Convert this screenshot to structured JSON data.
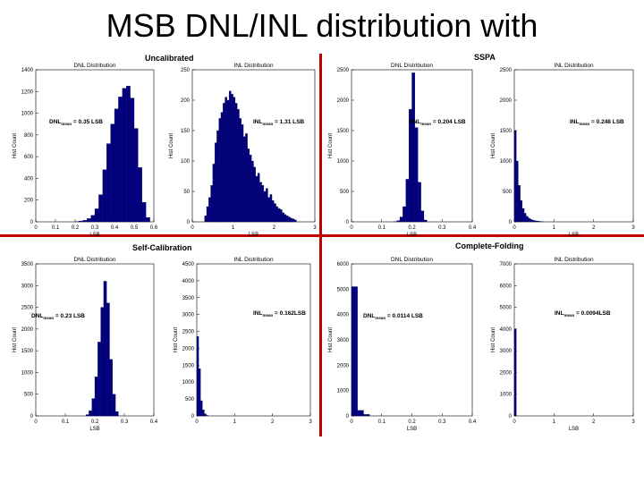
{
  "title": "MSB DNL/INL distribution with",
  "groups": {
    "uncalibrated": "Uncalibrated",
    "sspa": "SSPA",
    "self_calibration": "Self-Calibration",
    "complete_folding": "Complete-Folding"
  },
  "colors": {
    "bars": "#000080",
    "divider": "#c00000"
  },
  "chart_data": [
    {
      "type": "bar",
      "title": "DNL Distribution",
      "xlabel": "LSB",
      "ylabel": "Hist Count",
      "annotation": {
        "main": "DNL",
        "sub": "mean",
        "rest": " = 0.35 LSB"
      },
      "xlim": [
        0,
        0.6
      ],
      "ylim": [
        0,
        1400
      ],
      "xticks": [
        0,
        0.1,
        0.2,
        0.3,
        0.4,
        0.5,
        0.6
      ],
      "yticks": [
        0,
        200,
        400,
        600,
        800,
        1000,
        1200,
        1400
      ],
      "bin_width": 0.02,
      "x": [
        0.21,
        0.23,
        0.25,
        0.27,
        0.29,
        0.31,
        0.33,
        0.35,
        0.37,
        0.39,
        0.41,
        0.43,
        0.45,
        0.47,
        0.49,
        0.51,
        0.53,
        0.55,
        0.57
      ],
      "values": [
        3,
        8,
        15,
        30,
        60,
        120,
        250,
        480,
        720,
        900,
        1040,
        1150,
        1230,
        1250,
        1140,
        860,
        500,
        180,
        40
      ]
    },
    {
      "type": "bar",
      "title": "INL Distribution",
      "xlabel": "LSB",
      "ylabel": "Hist Count",
      "annotation": {
        "main": "INL",
        "sub": "mean",
        "rest": " = 1.31 LSB"
      },
      "xlim": [
        0,
        3
      ],
      "ylim": [
        0,
        250
      ],
      "xticks": [
        0,
        1,
        2,
        3
      ],
      "yticks": [
        0,
        50,
        100,
        150,
        200,
        250
      ],
      "bin_width": 0.05,
      "x": [
        0.325,
        0.375,
        0.425,
        0.475,
        0.525,
        0.575,
        0.625,
        0.675,
        0.725,
        0.775,
        0.825,
        0.875,
        0.925,
        0.975,
        1.025,
        1.075,
        1.125,
        1.175,
        1.225,
        1.275,
        1.325,
        1.375,
        1.425,
        1.475,
        1.525,
        1.575,
        1.625,
        1.675,
        1.725,
        1.775,
        1.825,
        1.875,
        1.925,
        1.975,
        2.025,
        2.075,
        2.125,
        2.175,
        2.225,
        2.275,
        2.325,
        2.375,
        2.425,
        2.475,
        2.525
      ],
      "values": [
        10,
        25,
        40,
        60,
        95,
        130,
        150,
        170,
        180,
        195,
        205,
        200,
        215,
        210,
        205,
        195,
        185,
        170,
        160,
        140,
        145,
        120,
        110,
        100,
        90,
        75,
        80,
        65,
        60,
        50,
        55,
        40,
        45,
        35,
        30,
        25,
        22,
        20,
        15,
        12,
        10,
        8,
        6,
        5,
        3
      ]
    },
    {
      "type": "bar",
      "title": "DNL Distribution",
      "xlabel": "LSB",
      "ylabel": "Hist Count",
      "annotation": {
        "main": "DNL",
        "sub": "mean",
        "rest": " = 0.204 LSB"
      },
      "xlim": [
        0,
        0.4
      ],
      "ylim": [
        0,
        2500
      ],
      "xticks": [
        0,
        0.1,
        0.2,
        0.3,
        0.4
      ],
      "yticks": [
        0,
        500,
        1000,
        1500,
        2000,
        2500
      ],
      "bin_width": 0.01,
      "x": [
        0.145,
        0.155,
        0.165,
        0.175,
        0.185,
        0.195,
        0.205,
        0.215,
        0.225,
        0.235,
        0.245
      ],
      "values": [
        5,
        20,
        80,
        250,
        700,
        1850,
        2450,
        1550,
        650,
        180,
        30
      ]
    },
    {
      "type": "bar",
      "title": "INL Distribution",
      "xlabel": "LSB",
      "ylabel": "Hist Count",
      "annotation": {
        "main": "INL",
        "sub": "mean",
        "rest": " = 0.248 LSB"
      },
      "xlim": [
        0,
        3
      ],
      "ylim": [
        0,
        2500
      ],
      "xticks": [
        0,
        1,
        2,
        3
      ],
      "yticks": [
        0,
        500,
        1000,
        1500,
        2000,
        2500
      ],
      "bin_width": 0.05,
      "x": [
        0.025,
        0.075,
        0.125,
        0.175,
        0.225,
        0.275,
        0.325,
        0.375,
        0.425,
        0.475,
        0.525,
        0.575,
        0.625,
        0.675,
        0.725
      ],
      "values": [
        1500,
        1000,
        600,
        350,
        220,
        140,
        90,
        60,
        40,
        28,
        20,
        14,
        10,
        6,
        3
      ]
    },
    {
      "type": "bar",
      "title": "DNL Distribution",
      "xlabel": "LSB",
      "ylabel": "Hist Count",
      "annotation": {
        "main": "DNL",
        "sub": "mean",
        "rest": " = 0.23 LSB"
      },
      "xlim": [
        0,
        0.4
      ],
      "ylim": [
        0,
        3500
      ],
      "xticks": [
        0,
        0.1,
        0.2,
        0.3,
        0.4
      ],
      "yticks": [
        0,
        500,
        1000,
        1500,
        2000,
        2500,
        3000,
        3500
      ],
      "bin_width": 0.01,
      "x": [
        0.175,
        0.185,
        0.195,
        0.205,
        0.215,
        0.225,
        0.235,
        0.245,
        0.255,
        0.265,
        0.275
      ],
      "values": [
        30,
        120,
        400,
        900,
        1700,
        2500,
        3100,
        2600,
        1300,
        500,
        100
      ]
    },
    {
      "type": "bar",
      "title": "INL Distribution",
      "xlabel": "",
      "ylabel": "Hist Count",
      "annotation": {
        "main": "INL",
        "sub": "mean",
        "rest": " = 0.162LSB"
      },
      "xlim": [
        0,
        3
      ],
      "ylim": [
        0,
        4500
      ],
      "xticks": [
        0,
        1,
        2,
        3
      ],
      "yticks": [
        0,
        500,
        1000,
        1500,
        2000,
        2500,
        3000,
        3500,
        4000,
        4500
      ],
      "bin_width": 0.05,
      "x": [
        0.025,
        0.075,
        0.125,
        0.175,
        0.225,
        0.275
      ],
      "values": [
        2350,
        1400,
        450,
        180,
        60,
        15
      ]
    },
    {
      "type": "bar",
      "title": "DNL Distribution",
      "xlabel": "LSB",
      "ylabel": "Hist Count",
      "annotation": {
        "main": "DNL",
        "sub": "mean",
        "rest": " = 0.0114 LSB"
      },
      "xlim": [
        0,
        0.4
      ],
      "ylim": [
        0,
        6000
      ],
      "xticks": [
        0,
        0.1,
        0.2,
        0.3,
        0.4
      ],
      "yticks": [
        0,
        1000,
        2000,
        3000,
        4000,
        5000,
        6000
      ],
      "bin_width": 0.02,
      "x": [
        0.01,
        0.03,
        0.05
      ],
      "values": [
        5100,
        220,
        60
      ]
    },
    {
      "type": "bar",
      "title": "INL Distribution",
      "xlabel": "LSB",
      "ylabel": "Hist Count",
      "annotation": {
        "main": "INL",
        "sub": "mean",
        "rest": " = 0.0094LSB"
      },
      "xlim": [
        0,
        3
      ],
      "ylim": [
        0,
        7000
      ],
      "xticks": [
        0,
        1,
        2,
        3
      ],
      "yticks": [
        0,
        1000,
        2000,
        3000,
        4000,
        5000,
        6000,
        7000
      ],
      "bin_width": 0.05,
      "x": [
        0.025
      ],
      "values": [
        4000
      ]
    }
  ]
}
